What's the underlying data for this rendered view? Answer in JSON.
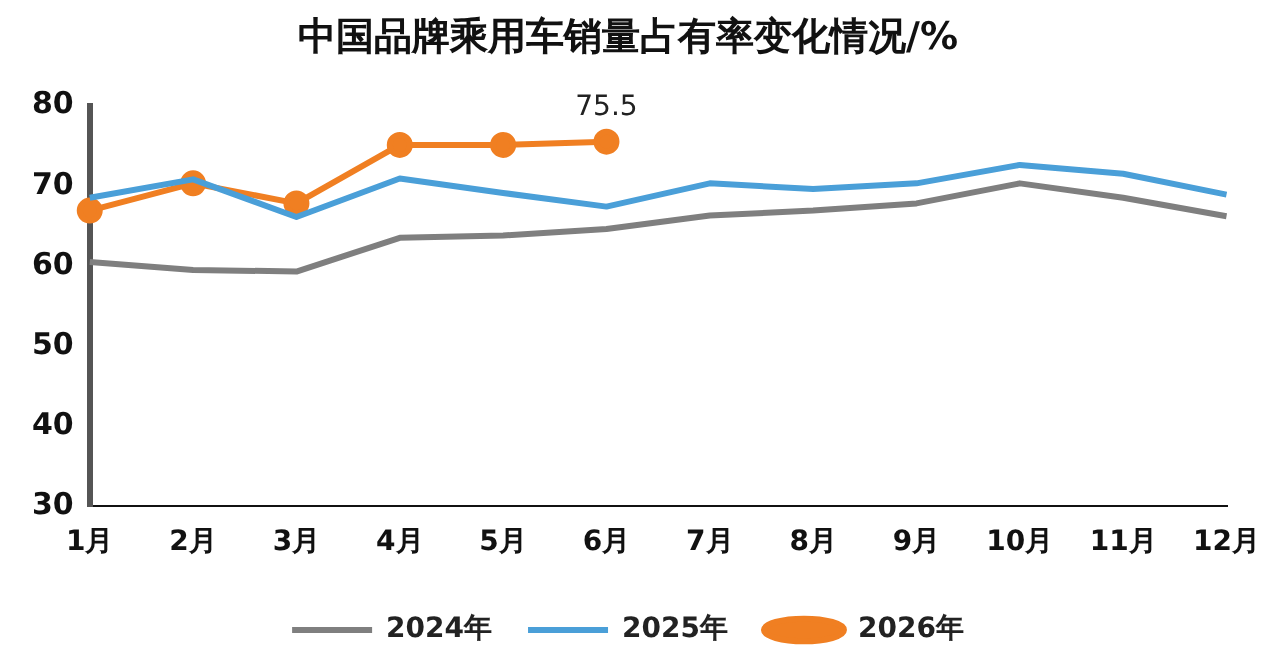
{
  "chart_data": {
    "type": "line",
    "title": "中国品牌乘用车销量占有率变化情况/%",
    "categories": [
      "1月",
      "2月",
      "3月",
      "4月",
      "5月",
      "6月",
      "7月",
      "8月",
      "9月",
      "10月",
      "11月",
      "12月"
    ],
    "series": [
      {
        "name": "2024年",
        "color": "#7f7f7f",
        "marker": "none",
        "values": [
          60.5,
          59.5,
          59.3,
          63.5,
          63.8,
          64.6,
          66.3,
          66.9,
          67.8,
          70.3,
          68.5,
          66.2
        ]
      },
      {
        "name": "2025年",
        "color": "#4a9fd8",
        "marker": "none",
        "values": [
          68.5,
          70.8,
          66.1,
          70.9,
          69.1,
          67.4,
          70.3,
          69.6,
          70.3,
          72.6,
          71.5,
          68.9
        ]
      },
      {
        "name": "2026年",
        "color": "#f07f22",
        "marker": "circle",
        "values": [
          66.9,
          70.3,
          67.8,
          75.1,
          75.1,
          75.5,
          null,
          null,
          null,
          null,
          null,
          null
        ],
        "value_labels": [
          null,
          null,
          null,
          null,
          null,
          "75.5",
          null,
          null,
          null,
          null,
          null,
          null
        ]
      }
    ],
    "ylim": [
      30,
      80
    ],
    "yticks": [
      30,
      40,
      50,
      60,
      70,
      80
    ],
    "grid": false,
    "legend": "bottom"
  }
}
